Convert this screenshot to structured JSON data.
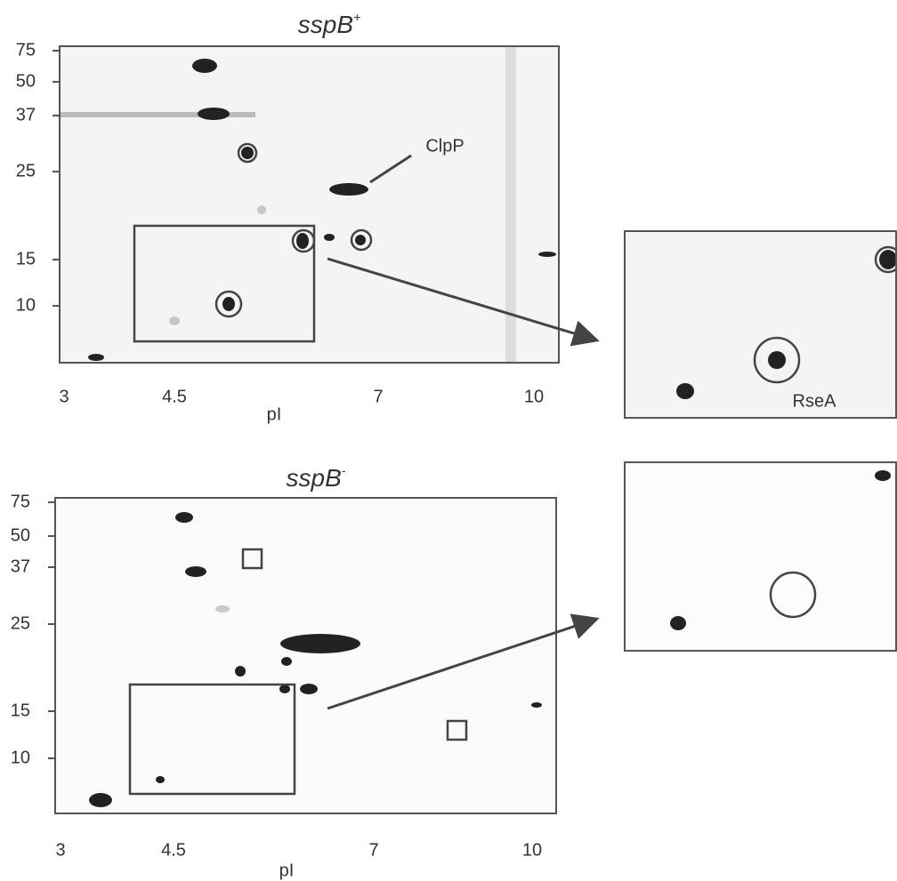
{
  "panels": [
    {
      "title": "sspB",
      "title_sup": "+",
      "yticks": [
        75,
        50,
        37,
        25,
        15,
        10
      ],
      "xticks": [
        3,
        4.5,
        7,
        10
      ],
      "xlabel": "pI",
      "annotation": "ClpP",
      "inset_label": "RseA"
    },
    {
      "title": "sspB",
      "title_sup": "-",
      "yticks": [
        75,
        50,
        37,
        25,
        15,
        10
      ],
      "xticks": [
        3,
        4.5,
        7,
        10
      ],
      "xlabel": "pI"
    }
  ]
}
